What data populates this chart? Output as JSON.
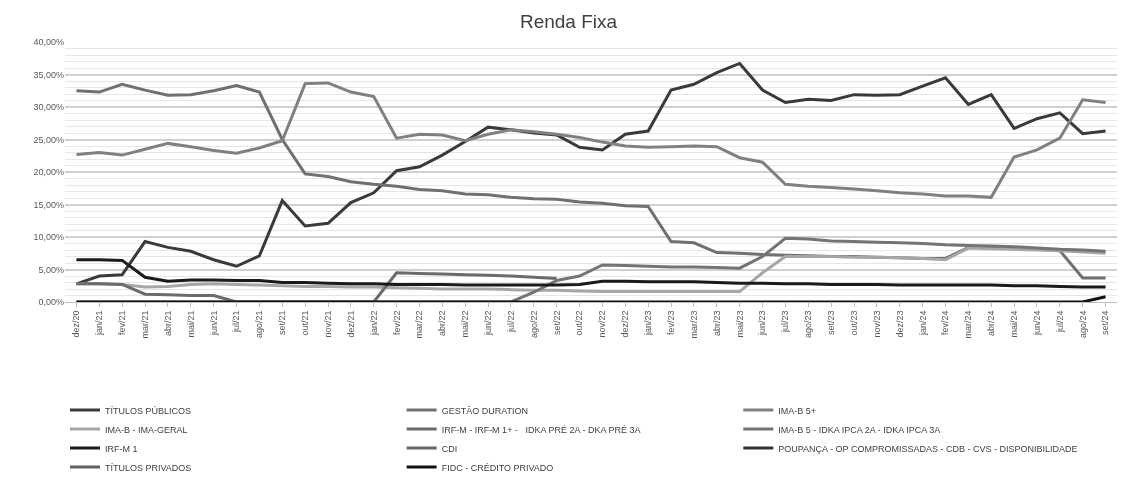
{
  "chart_data": {
    "type": "line",
    "title": "Renda Fixa",
    "categories": [
      "dez/20",
      "jan/21",
      "fev/21",
      "mar/21",
      "abr/21",
      "mai/21",
      "jun/21",
      "jul/21",
      "ago/21",
      "set/21",
      "out/21",
      "nov/21",
      "dez/21",
      "jan/22",
      "fev/22",
      "mar/22",
      "abr/22",
      "mai/22",
      "jun/22",
      "jul/22",
      "ago/22",
      "set/22",
      "out/22",
      "nov/22",
      "dez/22",
      "jan/23",
      "fev/23",
      "mar/23",
      "abr/23",
      "mai/23",
      "jun/23",
      "jul/23",
      "ago/23",
      "set/23",
      "out/23",
      "nov/23",
      "dez/23",
      "jan/24",
      "fev/24",
      "mar/24",
      "abr/24",
      "mai/24",
      "jun/24",
      "jul/24",
      "ago/24",
      "set/24"
    ],
    "series": [
      {
        "name": "TÍTULOS PÚBLICOS",
        "color": "#3a3a3a",
        "values": [
          2.8,
          4.0,
          4.2,
          9.3,
          8.4,
          7.8,
          6.5,
          5.5,
          7.1,
          15.6,
          11.7,
          12.1,
          15.3,
          16.8,
          20.2,
          20.8,
          22.6,
          24.7,
          26.9,
          26.5,
          26.0,
          25.7,
          23.8,
          23.4,
          25.8,
          26.3,
          32.6,
          33.5,
          35.3,
          36.7,
          32.6,
          30.7,
          31.2,
          31.0,
          31.9,
          31.8,
          31.9,
          33.2,
          34.5,
          30.4,
          31.9,
          26.7,
          28.2,
          29.1,
          25.9,
          26.3
        ]
      },
      {
        "name": "GESTÃO DURATION",
        "color": "#707070",
        "values": [
          32.5,
          32.3,
          33.5,
          32.6,
          31.8,
          31.9,
          32.5,
          33.3,
          32.3,
          25.0,
          19.7,
          19.3,
          18.5,
          18.1,
          17.8,
          17.3,
          17.1,
          16.6,
          16.5,
          16.1,
          15.9,
          15.8,
          15.4,
          15.2,
          14.8,
          14.7,
          9.3,
          9.1,
          7.6,
          7.5,
          7.3,
          7.2,
          7.1,
          7.0,
          7.0,
          6.9,
          6.8,
          6.7,
          6.7,
          8.4,
          8.4,
          8.3,
          8.1,
          7.9,
          3.7,
          3.7
        ]
      },
      {
        "name": "IMA-B 5+",
        "color": "#808080",
        "values": [
          22.7,
          23.0,
          22.6,
          23.5,
          24.4,
          23.9,
          23.3,
          22.9,
          23.7,
          24.8,
          33.6,
          33.7,
          32.3,
          31.6,
          25.2,
          25.8,
          25.7,
          24.8,
          25.8,
          26.5,
          26.2,
          25.8,
          25.3,
          24.6,
          24.0,
          23.8,
          23.9,
          24.0,
          23.9,
          22.2,
          21.5,
          18.1,
          17.8,
          17.6,
          17.4,
          17.1,
          16.8,
          16.6,
          16.3,
          16.3,
          16.1,
          22.3,
          23.4,
          25.2,
          31.1,
          30.7
        ]
      },
      {
        "name": "IMA-B - IMA-GERAL",
        "color": "#a6a6a6",
        "values": [
          2.8,
          2.8,
          2.7,
          2.3,
          2.4,
          2.7,
          2.8,
          2.7,
          2.6,
          2.5,
          2.4,
          2.4,
          2.3,
          2.3,
          2.2,
          2.1,
          2.0,
          2.0,
          2.0,
          1.9,
          1.8,
          1.8,
          1.7,
          1.6,
          1.6,
          1.6,
          1.6,
          1.6,
          1.6,
          1.6,
          4.5,
          7.0,
          7.0,
          7.0,
          6.9,
          6.9,
          6.8,
          6.7,
          6.5,
          8.3,
          8.2,
          8.1,
          8.0,
          7.9,
          7.7,
          7.5
        ]
      },
      {
        "name": "IRF-M - IRF-M 1+ -   IDKA PRÉ 2A - DKA PRÉ 3A",
        "color": "#6b6b6b",
        "values": [
          2.8,
          2.8,
          2.7,
          1.2,
          1.1,
          1.0,
          1.0,
          0,
          0,
          0,
          0,
          0,
          0,
          0,
          4.5,
          4.4,
          4.3,
          4.2,
          4.1,
          4.0,
          3.8,
          3.6,
          null,
          null,
          null,
          null,
          null,
          null,
          null,
          null,
          null,
          null,
          null,
          null,
          null,
          null,
          null,
          null,
          null,
          null,
          null,
          null,
          null,
          null,
          null,
          null
        ]
      },
      {
        "name": "IMA-B 5 - IDKA IPCA 2A - IDKA IPCA 3A",
        "color": "#747474",
        "values": [
          0,
          0,
          0,
          0,
          0,
          0,
          0,
          0,
          0,
          0,
          0,
          0,
          0,
          0,
          0,
          0,
          0,
          0,
          0,
          0,
          1.5,
          3.3,
          4.0,
          5.7,
          5.6,
          5.5,
          5.4,
          5.4,
          5.3,
          5.2,
          7.0,
          9.8,
          9.7,
          9.4,
          9.3,
          9.2,
          9.1,
          9.0,
          8.8,
          8.7,
          8.6,
          8.5,
          8.3,
          8.1,
          8.0,
          7.8
        ]
      },
      {
        "name": "IRF-M 1",
        "color": "#1a1a1a",
        "values": [
          6.5,
          6.5,
          6.4,
          3.8,
          3.2,
          3.4,
          3.4,
          3.3,
          3.3,
          3.0,
          3.0,
          2.9,
          2.8,
          2.8,
          2.7,
          2.7,
          2.7,
          2.6,
          2.6,
          2.6,
          2.6,
          2.6,
          2.7,
          3.2,
          3.2,
          3.1,
          3.1,
          3.1,
          3.0,
          2.9,
          2.9,
          2.8,
          2.8,
          2.7,
          2.7,
          2.7,
          2.6,
          2.6,
          2.6,
          2.6,
          2.6,
          2.5,
          2.5,
          2.4,
          2.3,
          2.3
        ]
      },
      {
        "name": "CDI",
        "color": "#666666",
        "values": [
          null,
          null,
          null,
          null,
          null,
          null,
          null,
          null,
          null,
          null,
          null,
          null,
          null,
          null,
          null,
          null,
          null,
          null,
          null,
          null,
          null,
          null,
          null,
          null,
          null,
          null,
          null,
          null,
          null,
          null,
          null,
          null,
          null,
          null,
          null,
          null,
          null,
          null,
          null,
          null,
          null,
          null,
          null,
          null,
          null,
          null
        ]
      },
      {
        "name": "POUPANÇA - OP COMPROMISSADAS - CDB - CVS - DISPONIBILIDADE",
        "color": "#333333",
        "values": [
          null,
          null,
          null,
          null,
          null,
          null,
          null,
          null,
          null,
          null,
          null,
          null,
          null,
          null,
          null,
          null,
          null,
          null,
          null,
          null,
          null,
          null,
          null,
          null,
          null,
          null,
          null,
          null,
          null,
          null,
          null,
          null,
          null,
          null,
          null,
          null,
          null,
          null,
          null,
          null,
          null,
          null,
          null,
          null,
          null,
          null
        ]
      },
      {
        "name": "TÍTULOS PRIVADOS",
        "color": "#606060",
        "values": [
          null,
          null,
          null,
          null,
          null,
          null,
          null,
          null,
          null,
          null,
          null,
          null,
          null,
          null,
          null,
          null,
          null,
          null,
          null,
          null,
          null,
          null,
          null,
          null,
          null,
          null,
          null,
          null,
          null,
          null,
          null,
          null,
          null,
          null,
          null,
          null,
          null,
          null,
          null,
          null,
          null,
          null,
          null,
          null,
          null,
          null
        ]
      },
      {
        "name": "FIDC - CRÉDITO PRIVADO",
        "color": "#111111",
        "values": [
          0,
          0,
          0,
          0,
          0,
          0,
          0,
          0,
          0,
          0,
          0,
          0,
          0,
          0,
          0,
          0,
          0,
          0,
          0,
          0,
          0,
          0,
          0,
          0,
          0,
          0,
          0,
          0,
          0,
          0,
          0,
          0,
          0,
          0,
          0,
          0,
          0,
          0,
          0,
          0,
          0,
          0,
          0,
          0,
          0,
          0.8
        ]
      }
    ],
    "ylim": [
      0,
      40
    ],
    "yticks": [
      {
        "value": 0,
        "label": "0,00%"
      },
      {
        "value": 5,
        "label": "5,00%"
      },
      {
        "value": 10,
        "label": "10,00%"
      },
      {
        "value": 15,
        "label": "15,00%"
      },
      {
        "value": 20,
        "label": "20,00%"
      },
      {
        "value": 25,
        "label": "25,00%"
      },
      {
        "value": 30,
        "label": "30,00%"
      },
      {
        "value": 35,
        "label": "35,00%"
      },
      {
        "value": 40,
        "label": "40,00%"
      }
    ],
    "grid": "y",
    "legend": "bottom",
    "marker": "none",
    "line_style": "solid"
  }
}
